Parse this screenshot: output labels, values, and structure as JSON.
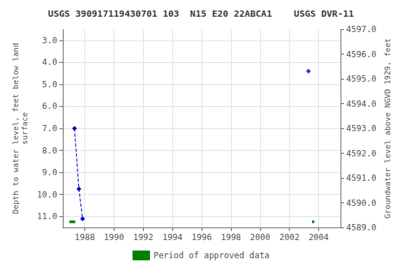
{
  "chart_data": {
    "type": "line",
    "title": "USGS 390917119430701 103  N15 E20 22ABCA1    USGS DVR-11",
    "ylabel": "Depth to water level, feet below land\nsurface",
    "y2label": "Groundwater level above NGVD 1929, feet",
    "xlim": [
      1986.5,
      2005.5
    ],
    "xticks": [
      1988,
      1990,
      1992,
      1994,
      1996,
      1998,
      2000,
      2002,
      2004
    ],
    "ylim": [
      11.5,
      2.5
    ],
    "yticks": [
      {
        "value": 3.0,
        "label": "3.0"
      },
      {
        "value": 4.0,
        "label": "4.0"
      },
      {
        "value": 5.0,
        "label": "5.0"
      },
      {
        "value": 6.0,
        "label": "6.0"
      },
      {
        "value": 7.0,
        "label": "7.0"
      },
      {
        "value": 8.0,
        "label": "8.0"
      },
      {
        "value": 9.0,
        "label": "9.0"
      },
      {
        "value": 10.0,
        "label": "10.0"
      },
      {
        "value": 11.0,
        "label": "11.0"
      }
    ],
    "y2lim": [
      4589.0,
      4597.0
    ],
    "y2ticks": [
      {
        "value": 4589.0,
        "label": "4589.0"
      },
      {
        "value": 4590.0,
        "label": "4590.0"
      },
      {
        "value": 4591.0,
        "label": "4591.0"
      },
      {
        "value": 4592.0,
        "label": "4592.0"
      },
      {
        "value": 4593.0,
        "label": "4593.0"
      },
      {
        "value": 4594.0,
        "label": "4594.0"
      },
      {
        "value": 4595.0,
        "label": "4595.0"
      },
      {
        "value": 4596.0,
        "label": "4596.0"
      },
      {
        "value": 4597.0,
        "label": "4597.0"
      }
    ],
    "grid": true,
    "legend": "bottom",
    "series": [
      {
        "type": "line",
        "color": "#0000cc",
        "marker": "diamond",
        "line_style": "dashed",
        "x": [
          1987.3,
          1987.6,
          1987.85
        ],
        "values": [
          7.0,
          9.75,
          11.1
        ]
      },
      {
        "type": "scatter",
        "color": "#0000cc",
        "marker": "diamond",
        "x": [
          2003.3
        ],
        "values": [
          4.4
        ]
      }
    ],
    "approved_periods": {
      "name": "Period of approved data",
      "color": "#008000",
      "y": 11.18,
      "height": 0.12,
      "segments": [
        {
          "x": 1986.95,
          "width": 0.4
        },
        {
          "x": 2003.55,
          "width": 0.15
        }
      ]
    }
  }
}
